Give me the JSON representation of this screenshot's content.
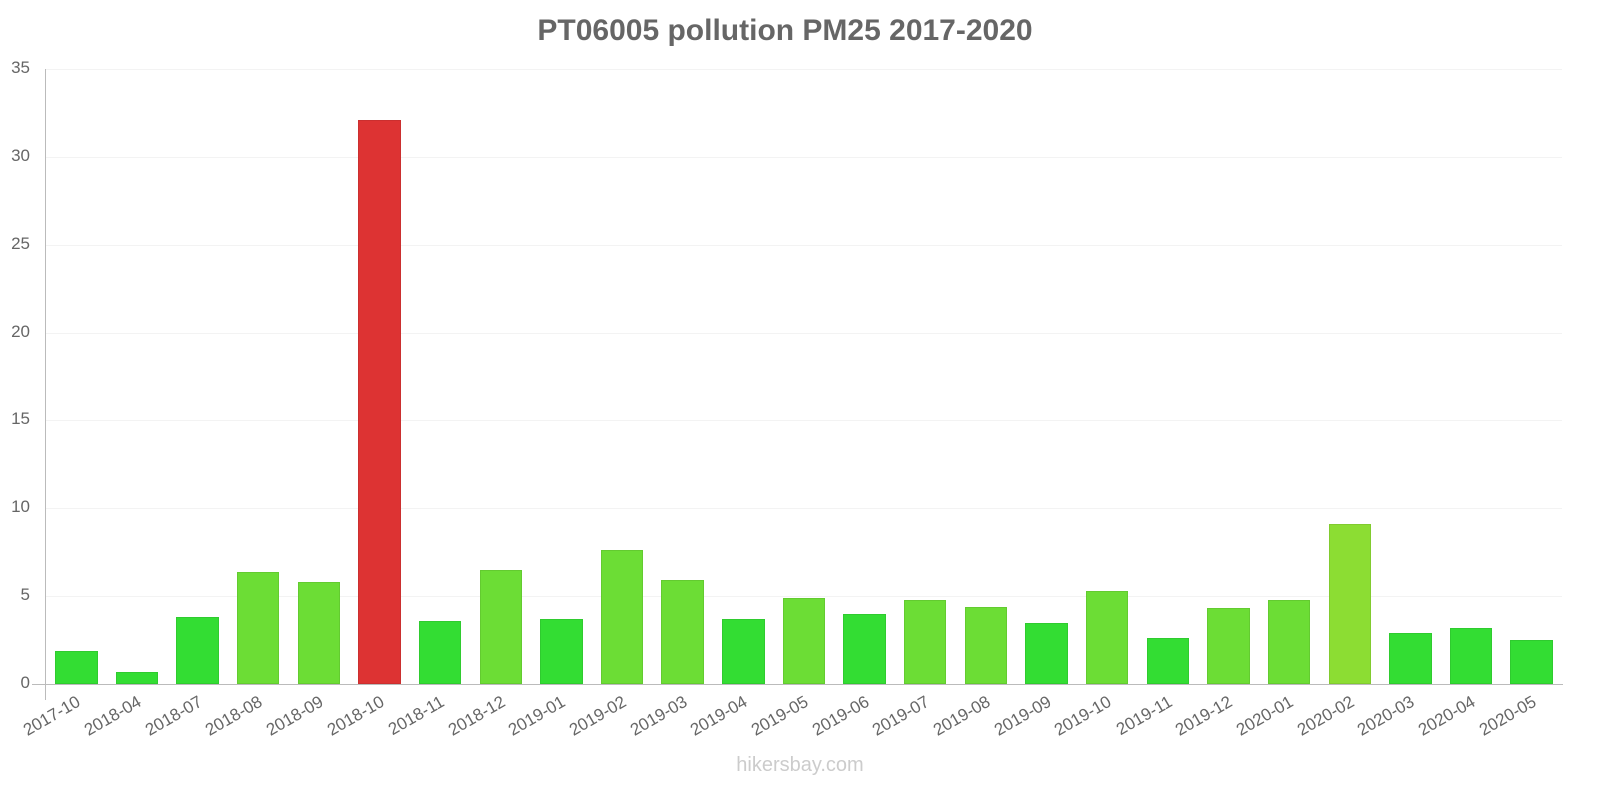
{
  "chart_data": {
    "type": "bar",
    "title": "PT06005 pollution PM25 2017-2020",
    "xlabel": "",
    "ylabel": "",
    "ylim": [
      0,
      35
    ],
    "yticks": [
      0,
      5,
      10,
      15,
      20,
      25,
      30,
      35
    ],
    "grid": true,
    "legend": null,
    "categories": [
      "2017-10",
      "2018-04",
      "2018-07",
      "2018-08",
      "2018-09",
      "2018-10",
      "2018-11",
      "2018-12",
      "2019-01",
      "2019-02",
      "2019-03",
      "2019-04",
      "2019-05",
      "2019-06",
      "2019-07",
      "2019-08",
      "2019-09",
      "2019-10",
      "2019-11",
      "2019-12",
      "2020-01",
      "2020-02",
      "2020-03",
      "2020-04",
      "2020-05"
    ],
    "values": [
      1.9,
      0.7,
      3.8,
      6.4,
      5.8,
      32.1,
      3.6,
      6.5,
      3.7,
      7.6,
      5.9,
      3.7,
      4.9,
      4.0,
      4.8,
      4.4,
      3.5,
      5.3,
      2.6,
      4.3,
      4.8,
      9.1,
      2.9,
      3.2,
      2.5
    ],
    "colors": [
      "#33dd33",
      "#33dd33",
      "#33dd33",
      "#6cdd35",
      "#6cdd35",
      "#dd3333",
      "#33dd33",
      "#6cdd35",
      "#33dd33",
      "#6cdd35",
      "#6cdd35",
      "#33dd33",
      "#6cdd35",
      "#33dd33",
      "#6cdd35",
      "#6cdd35",
      "#33dd33",
      "#6cdd35",
      "#33dd33",
      "#6cdd35",
      "#6cdd35",
      "#8cdd33",
      "#33dd33",
      "#33dd33",
      "#33dd33"
    ]
  },
  "watermark": "hikersbay.com"
}
